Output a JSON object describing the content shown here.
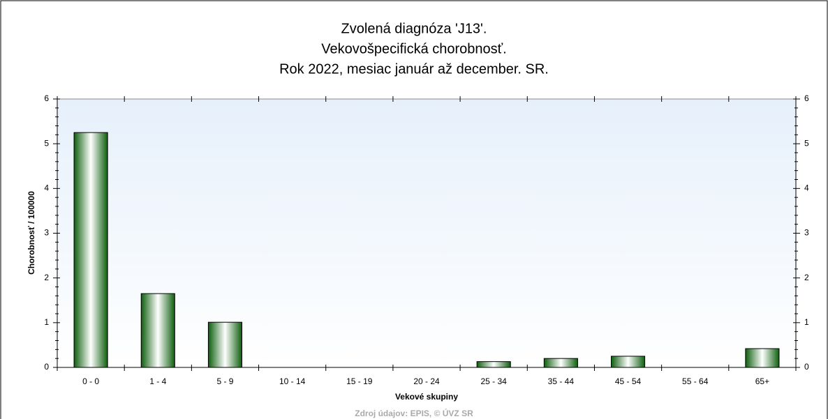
{
  "chart_data": {
    "type": "bar",
    "title": [
      "Zvolená diagnóza 'J13'.",
      "Vekovošpecifická chorobnosť.",
      "Rok 2022, mesiac január až december. SR."
    ],
    "y_label": "Chorobnosť / 100000",
    "x_label": "Vekové skupiny",
    "source": "Zdroj údajov: EPIS, © ÚVZ SR",
    "categories": [
      "0 - 0",
      "1 - 4",
      "5 - 9",
      "10 - 14",
      "15 - 19",
      "20 - 24",
      "25 - 34",
      "35 - 44",
      "45 - 54",
      "55 - 64",
      "65+"
    ],
    "values": [
      5.25,
      1.65,
      1.01,
      0,
      0,
      0,
      0.13,
      0.2,
      0.25,
      0,
      0.42
    ],
    "color": "#1a7a1a",
    "ylim": [
      0,
      6
    ],
    "yticks": [
      0,
      1,
      2,
      3,
      4,
      5,
      6
    ],
    "y2lim": [
      0,
      6
    ],
    "y2ticks": [
      0,
      1,
      2,
      3,
      4,
      5,
      6
    ]
  }
}
